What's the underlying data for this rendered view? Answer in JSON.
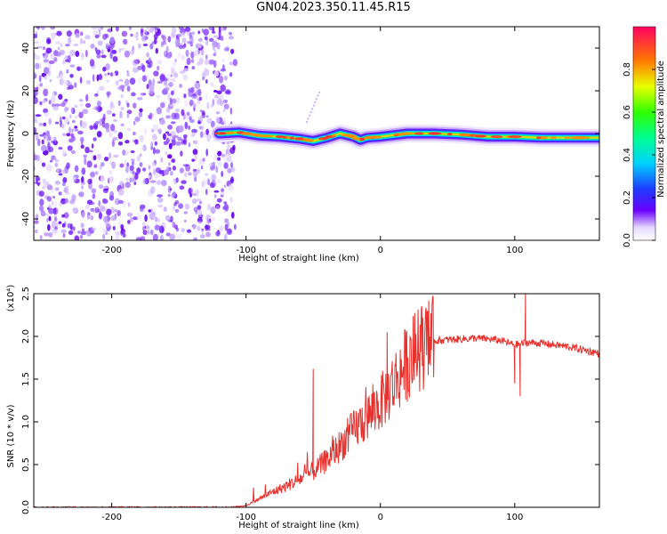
{
  "title": "GN04.2023.350.11.45.R15",
  "chart_data": [
    {
      "type": "heatmap",
      "name": "spectrogram",
      "xlabel": "Height of straight line (km)",
      "ylabel": "Frequency (Hz)",
      "xlim": [
        -258,
        163
      ],
      "ylim": [
        -50,
        50
      ],
      "xticks": [
        -200,
        -100,
        0,
        100
      ],
      "yticks": [
        -40,
        -20,
        0,
        20,
        40
      ],
      "colorbar": {
        "label": "Normalized spectral amplitude",
        "range": [
          0.0,
          1.0
        ],
        "ticks": [
          0.0,
          0.2,
          0.4,
          0.6,
          0.8
        ],
        "tick_labels": [
          "0.0",
          "0.2",
          "0.4",
          "0.6",
          "0.8"
        ]
      },
      "noise_region_x": [
        -258,
        -110
      ],
      "signal_band": {
        "x_start": -120,
        "ridge": [
          [
            -120,
            0
          ],
          [
            -105,
            0.5
          ],
          [
            -90,
            -1
          ],
          [
            -75,
            -1.5
          ],
          [
            -60,
            -2.5
          ],
          [
            -50,
            -3.5
          ],
          [
            -40,
            -2
          ],
          [
            -30,
            0
          ],
          [
            -20,
            -1.5
          ],
          [
            -15,
            -3
          ],
          [
            -10,
            -2
          ],
          [
            0,
            -1.5
          ],
          [
            20,
            0
          ],
          [
            40,
            0
          ],
          [
            60,
            -0.5
          ],
          [
            80,
            -1.5
          ],
          [
            100,
            -1.5
          ],
          [
            120,
            -2
          ],
          [
            163,
            -2
          ]
        ],
        "faint_streak": [
          [
            -55,
            5
          ],
          [
            -45,
            20
          ]
        ]
      }
    },
    {
      "type": "line",
      "name": "snr",
      "xlabel": "Height of straight line (km)",
      "ylabel": "SNR (10 * v/v)",
      "y_multiplier_label": "(x10⁴)",
      "xlim": [
        -258,
        163
      ],
      "ylim": [
        0,
        2.5
      ],
      "xticks": [
        -200,
        -100,
        0,
        100
      ],
      "yticks": [
        0.0,
        0.5,
        1.0,
        1.5,
        2.0,
        2.5
      ],
      "ytick_labels": [
        "0.0",
        "0.5",
        "1.0",
        "1.5",
        "2.0",
        "2.5"
      ],
      "color": "#e8302c",
      "series": [
        {
          "x": [
            -258,
            -200,
            -150,
            -110,
            -100,
            -90,
            -80,
            -70,
            -60,
            -50,
            -40,
            -30,
            -20,
            -10,
            0,
            10,
            20,
            30,
            40,
            50,
            60,
            70,
            80,
            90,
            100,
            110,
            120,
            140,
            163
          ],
          "y": [
            0.0,
            0.0,
            0.0,
            0.0,
            0.02,
            0.1,
            0.18,
            0.25,
            0.33,
            0.42,
            0.55,
            0.72,
            0.9,
            1.05,
            1.22,
            1.45,
            1.7,
            1.88,
            1.95,
            1.96,
            1.97,
            1.98,
            1.97,
            1.95,
            1.9,
            1.93,
            1.92,
            1.88,
            1.8
          ]
        }
      ],
      "spikes": [
        [
          -50,
          1.62
        ],
        [
          5,
          2.05
        ],
        [
          100,
          1.45
        ],
        [
          104,
          1.3
        ],
        [
          108,
          2.5
        ]
      ]
    }
  ]
}
